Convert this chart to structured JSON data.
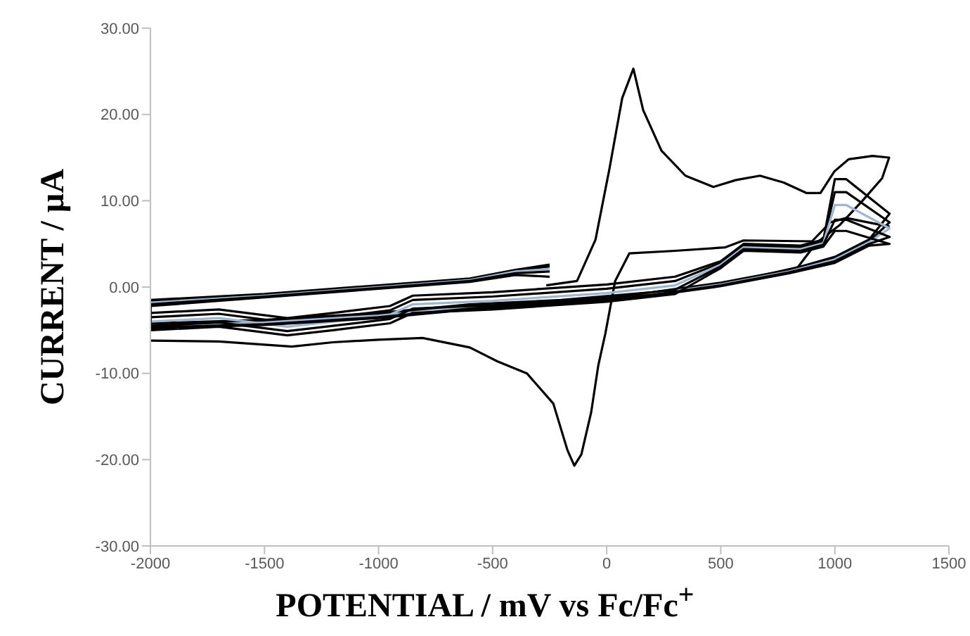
{
  "chart_data": {
    "type": "line",
    "xlabel": "POTENTIAL / mV vs Fc/Fc$^{+}$",
    "ylabel": "CURRENT / µA",
    "xlim": [
      -2000,
      1500
    ],
    "xticks": [
      -2000,
      -1500,
      -1000,
      -500,
      0,
      500,
      1000,
      1500
    ],
    "ylim": [
      -30,
      30
    ],
    "yticks": [
      {
        "value": -30,
        "label": "-30.00"
      },
      {
        "value": -20,
        "label": "-20.00"
      },
      {
        "value": -10,
        "label": "-10.00"
      },
      {
        "value": 0,
        "label": "0.00"
      },
      {
        "value": 10,
        "label": "10.00"
      },
      {
        "value": 20,
        "label": "20.00"
      },
      {
        "value": 30,
        "label": "30.00"
      }
    ],
    "grid": false,
    "legend": false,
    "marker": "none",
    "line_style": "solid",
    "series": [
      {
        "color": "#000000",
        "x": [
          -265,
          -130,
          -49,
          12,
          68,
          117,
          160,
          240,
          345,
          468,
          567,
          672,
          776,
          875,
          937,
          998,
          1060,
          1165,
          1238,
          1207,
          1121,
          1022,
          918,
          838,
          505,
          99,
          -314,
          -800,
          -1200,
          -1600,
          -2000
        ],
        "values": [
          0.2,
          0.7,
          5.5,
          13.7,
          21.9,
          25.3,
          20.5,
          15.8,
          12.9,
          11.6,
          12.4,
          12.9,
          12.1,
          10.9,
          10.9,
          13.4,
          14.8,
          15.2,
          15.0,
          12.6,
          10.0,
          7.2,
          5.1,
          2.3,
          0.3,
          -1.0,
          -2.1,
          -3.0,
          -3.6,
          -4.0,
          -4.3
        ]
      },
      {
        "color": "#000000",
        "x": [
          -2000,
          -1700,
          -1380,
          -1200,
          -1000,
          -807,
          -600,
          -480,
          -350,
          -234,
          -172,
          -142,
          -111,
          -68,
          -37,
          -6,
          37,
          99,
          300,
          520,
          600,
          900,
          980,
          1050,
          1240
        ],
        "values": [
          -6.2,
          -6.3,
          -6.9,
          -6.4,
          -6.1,
          -5.9,
          -7.0,
          -8.6,
          -10.0,
          -13.5,
          -18.9,
          -20.7,
          -19.4,
          -14.5,
          -9.1,
          -5.4,
          0.7,
          3.9,
          4.2,
          4.6,
          5.4,
          5.3,
          7.5,
          8.0,
          7.0
        ]
      },
      {
        "color": "#000000",
        "x": [
          -2000,
          -1700,
          -1400,
          -1200,
          -950,
          -850,
          -500,
          0,
          300,
          500,
          600,
          850,
          950,
          1000,
          1050,
          1240,
          1150,
          1000,
          800,
          500,
          200,
          -200,
          -600,
          -1000,
          -1500,
          -2000,
          -2000,
          -1500,
          -1000,
          -600,
          -400,
          -250
        ],
        "values": [
          -3.0,
          -2.6,
          -3.6,
          -3.0,
          -2.2,
          -1.0,
          -0.6,
          0.3,
          1.2,
          3.0,
          5.0,
          4.8,
          5.5,
          12.5,
          12.5,
          8.5,
          5.5,
          3.5,
          2.0,
          0.5,
          -0.6,
          -1.5,
          -2.0,
          -3.0,
          -3.8,
          -4.2,
          -1.5,
          -0.8,
          0.2,
          1.0,
          2.0,
          2.6
        ]
      },
      {
        "color": "#000000",
        "x": [
          -2000,
          -1700,
          -1400,
          -1200,
          -950,
          -850,
          -500,
          0,
          300,
          500,
          600,
          850,
          950,
          1000,
          1050,
          1240,
          1150,
          1000,
          800,
          500,
          200,
          -200,
          -600,
          -1000,
          -1500,
          -2000,
          -2000,
          -1500,
          -1000,
          -600,
          -400,
          -250
        ],
        "values": [
          -3.5,
          -3.1,
          -4.1,
          -3.5,
          -2.7,
          -1.5,
          -1.1,
          -0.2,
          0.7,
          2.8,
          4.8,
          4.6,
          5.3,
          11.0,
          11.0,
          7.5,
          5.3,
          3.3,
          1.9,
          0.4,
          -0.7,
          -1.6,
          -2.2,
          -3.2,
          -4.0,
          -4.4,
          -1.7,
          -0.9,
          0.1,
          0.9,
          1.9,
          2.4
        ]
      },
      {
        "color": "#9bb7d4",
        "x": [
          -2000,
          -1700,
          -1400,
          -1200,
          -950,
          -850,
          -500,
          0,
          300,
          500,
          600,
          850,
          950,
          1000,
          1050,
          1240,
          1150,
          1000,
          800,
          500,
          200,
          -200,
          -600,
          -1000,
          -1500,
          -2000,
          -2000,
          -1500,
          -1000,
          -600,
          -400,
          -250
        ],
        "values": [
          -4.0,
          -3.6,
          -4.6,
          -4.0,
          -3.2,
          -2.0,
          -1.6,
          -0.7,
          0.2,
          2.6,
          4.6,
          4.4,
          5.1,
          9.5,
          9.5,
          6.8,
          5.2,
          3.2,
          1.8,
          0.3,
          -0.8,
          -1.7,
          -2.3,
          -3.3,
          -4.1,
          -4.5,
          -1.8,
          -1.0,
          0.0,
          0.8,
          1.8,
          2.1
        ]
      },
      {
        "color": "#000000",
        "x": [
          -2000,
          -1700,
          -1400,
          -1200,
          -950,
          -850,
          -500,
          0,
          300,
          500,
          600,
          850,
          950,
          1000,
          1050,
          1240,
          1150,
          1000,
          800,
          500,
          200,
          -200,
          -600,
          -1000,
          -1500,
          -2000,
          -2000,
          -1500,
          -1000,
          -600,
          -400,
          -250
        ],
        "values": [
          -4.5,
          -4.1,
          -5.1,
          -4.5,
          -3.7,
          -2.5,
          -2.1,
          -1.2,
          -0.3,
          2.4,
          4.4,
          4.2,
          4.9,
          7.8,
          7.8,
          5.8,
          5.0,
          3.0,
          1.7,
          0.2,
          -0.9,
          -1.8,
          -2.5,
          -3.5,
          -4.3,
          -4.7,
          -2.0,
          -1.1,
          -0.1,
          0.7,
          1.6,
          1.8
        ]
      },
      {
        "color": "#000000",
        "x": [
          -2000,
          -1700,
          -1400,
          -1200,
          -950,
          -850,
          -500,
          0,
          300,
          500,
          600,
          850,
          950,
          1000,
          1050,
          1240,
          1150,
          1000,
          800,
          500,
          200,
          -200,
          -600,
          -1000,
          -1500,
          -2000,
          -2000,
          -1500,
          -1000,
          -600,
          -400,
          -250
        ],
        "values": [
          -5.0,
          -4.6,
          -5.6,
          -5.0,
          -4.2,
          -3.0,
          -2.6,
          -1.7,
          -0.8,
          2.2,
          4.2,
          4.0,
          4.7,
          6.5,
          6.5,
          5.0,
          4.8,
          2.8,
          1.6,
          0.1,
          -1.0,
          -1.9,
          -2.6,
          -3.6,
          -4.4,
          -4.8,
          -2.2,
          -1.2,
          -0.2,
          0.6,
          1.4,
          1.2
        ]
      }
    ]
  }
}
